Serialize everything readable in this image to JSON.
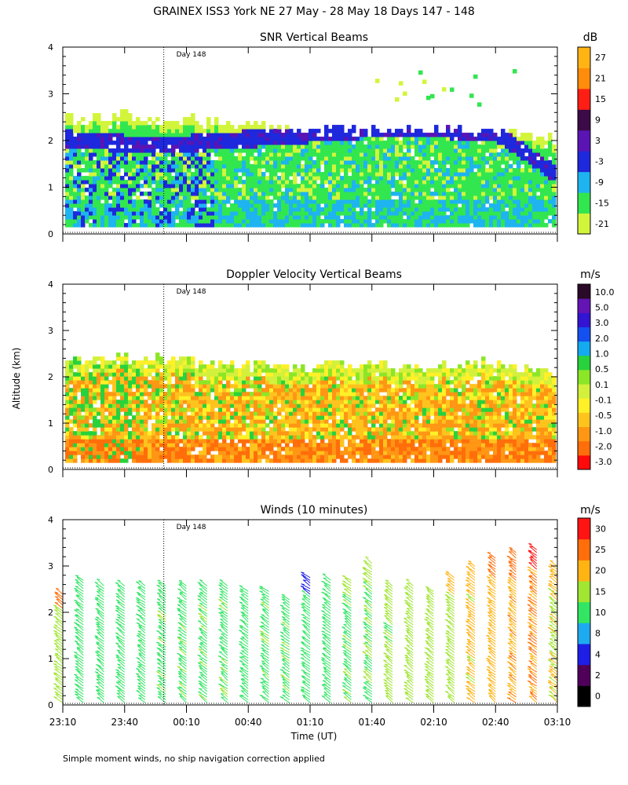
{
  "figure_title": "GRAINEX ISS3 York NE  27 May - 28 May 18 Days 147 - 148",
  "shared_ylabel": "Altitude (km)",
  "shared_xlabel": "Time (UT)",
  "footnote": "Simple moment winds, no ship navigation correction applied",
  "day_marker_label": "Day 148",
  "x_tick_labels": [
    "23:10",
    "23:40",
    "00:10",
    "00:40",
    "01:10",
    "01:40",
    "02:10",
    "02:40",
    "03:10"
  ],
  "y_tick_labels": [
    "0",
    "1",
    "2",
    "3",
    "4"
  ],
  "colors": {
    "snr_scale": [
      "#d2f53c",
      "#32e650",
      "#1eb4f0",
      "#1e28dc",
      "#5a14b4",
      "#3c0a46",
      "#ff1e14",
      "#ff8c0a",
      "#ffb414"
    ],
    "vel_scale": [
      "#ff0a0a",
      "#ff6e0a",
      "#ff9614",
      "#ffc31e",
      "#fff028",
      "#d2f03c",
      "#8ce628",
      "#28d23c",
      "#14aaf0",
      "#1450f0",
      "#3214d2",
      "#6414b4",
      "#2a0a28"
    ],
    "wind_scale": [
      "#000000",
      "#50005a",
      "#1e1ee6",
      "#1eaaf0",
      "#32e664",
      "#a0e632",
      "#ffb414",
      "#ff6e0a",
      "#ff1414"
    ]
  },
  "chart_data": [
    {
      "type": "heatmap",
      "title": "SNR Vertical Beams",
      "colorbar_unit": "dB",
      "colorbar_ticks": [
        "-21",
        "-15",
        "-9",
        "-3",
        "3",
        "9",
        "15",
        "21",
        "27"
      ],
      "xlabel": "Time (UT)",
      "ylabel": "Altitude (km)",
      "xlim": [
        "23:10",
        "03:10"
      ],
      "ylim": [
        0,
        4
      ],
      "x_tick_labels": [
        "23:10",
        "23:40",
        "00:10",
        "00:40",
        "01:10",
        "01:40",
        "02:10",
        "02:40",
        "03:10"
      ],
      "day_marker": {
        "time": "23:59",
        "label": "Day 148"
      },
      "summary": {
        "echo_top_km": [
          2.4,
          2.5,
          2.4,
          2.3,
          2.2,
          2.2,
          2.2,
          2.2,
          2.0
        ],
        "high_snr_layer_km": [
          2.0,
          1.9,
          1.9,
          2.0,
          2.1,
          2.2,
          2.2,
          2.1,
          1.2
        ],
        "echo_top_times": [
          "23:10",
          "23:40",
          "00:10",
          "00:40",
          "01:10",
          "01:40",
          "02:10",
          "02:40",
          "03:10"
        ]
      }
    },
    {
      "type": "heatmap",
      "title": "Doppler Velocity Vertical Beams",
      "colorbar_unit": "m/s",
      "colorbar_ticks": [
        "-3.0",
        "-2.0",
        "-1.0",
        "-0.5",
        "-0.1",
        "0.1",
        "0.5",
        "1.0",
        "2.0",
        "3.0",
        "5.0",
        "10.0"
      ],
      "xlabel": "Time (UT)",
      "ylabel": "Altitude (km)",
      "xlim": [
        "23:10",
        "03:10"
      ],
      "ylim": [
        0,
        4
      ],
      "x_tick_labels": [
        "23:10",
        "23:40",
        "00:10",
        "00:40",
        "01:10",
        "01:40",
        "02:10",
        "02:40",
        "03:10"
      ],
      "day_marker": {
        "time": "23:59",
        "label": "Day 148"
      },
      "summary": {
        "echo_top_km": [
          2.3,
          2.4,
          2.3,
          2.2,
          2.2,
          2.2,
          2.2,
          2.3,
          2.0
        ],
        "dominant_velocity_ms": "-0.5 to -1.0"
      }
    },
    {
      "type": "scatter",
      "title": "Winds (10 minutes)",
      "colorbar_unit": "m/s",
      "colorbar_ticks": [
        "0",
        "2",
        "4",
        "8",
        "10",
        "15",
        "20",
        "25",
        "30"
      ],
      "xlabel": "Time (UT)",
      "ylabel": "Altitude (km)",
      "xlim": [
        "23:10",
        "03:10"
      ],
      "ylim": [
        0,
        4
      ],
      "x_tick_labels": [
        "23:10",
        "23:40",
        "00:10",
        "00:40",
        "01:10",
        "01:40",
        "02:10",
        "02:40",
        "03:10"
      ],
      "day_marker": {
        "time": "23:59",
        "label": "Day 148"
      },
      "profile_times": [
        "23:10",
        "23:20",
        "23:30",
        "23:40",
        "23:50",
        "00:00",
        "00:10",
        "00:20",
        "00:30",
        "00:40",
        "00:50",
        "01:00",
        "01:10",
        "01:20",
        "01:30",
        "01:40",
        "01:50",
        "02:00",
        "02:10",
        "02:20",
        "02:30",
        "02:40",
        "02:50",
        "03:00",
        "03:10"
      ],
      "profile_tops_km": [
        2.4,
        2.7,
        2.6,
        2.6,
        2.6,
        2.6,
        2.6,
        2.6,
        2.6,
        2.5,
        2.5,
        2.3,
        2.8,
        2.7,
        2.7,
        3.1,
        2.6,
        2.6,
        2.5,
        2.8,
        3.0,
        3.2,
        3.3,
        3.4,
        3.0
      ],
      "profile_speed_ms": [
        18,
        13,
        13,
        13,
        13,
        14,
        14,
        14,
        14,
        13,
        14,
        14,
        13,
        13,
        14,
        15,
        16,
        17,
        17,
        18,
        21,
        22,
        24,
        25,
        20
      ],
      "upper_speed_ms": [
        28,
        13,
        13,
        13,
        13,
        14,
        12,
        12,
        12,
        13,
        14,
        14,
        4,
        10,
        17,
        18,
        18,
        17,
        15,
        20,
        22,
        28,
        28,
        30,
        22
      ]
    }
  ]
}
